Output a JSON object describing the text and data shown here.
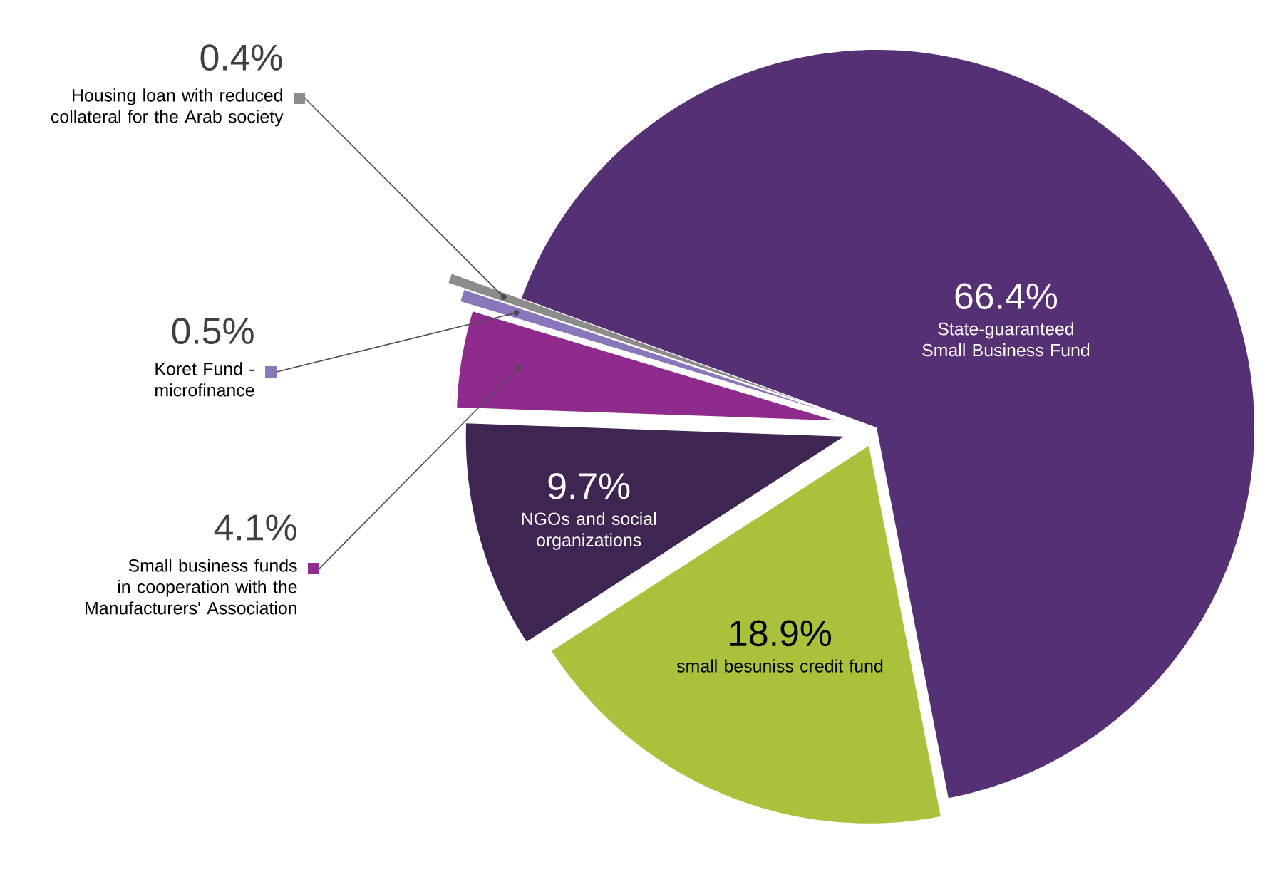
{
  "chart_data": {
    "type": "pie",
    "categories": [
      "State-guaranteed Small Business Fund",
      "small besuniss credit fund",
      "NGOs and social organizations",
      "Small business funds in cooperation with the Manufacturers' Association",
      "Koret Fund - microfinance",
      "Housing loan with reduced collateral for the Arab society"
    ],
    "values": [
      66.4,
      18.9,
      9.7,
      4.1,
      0.5,
      0.4
    ],
    "value_labels": [
      "66.4%",
      "18.9%",
      "9.7%",
      "4.1%",
      "0.5%",
      "0.4%"
    ],
    "legend": "left",
    "colors": [
      "#553074",
      "#a9c23c",
      "#3f2652",
      "#8e2b8c",
      "#8a76bb",
      "#8c8c8c"
    ]
  }
}
